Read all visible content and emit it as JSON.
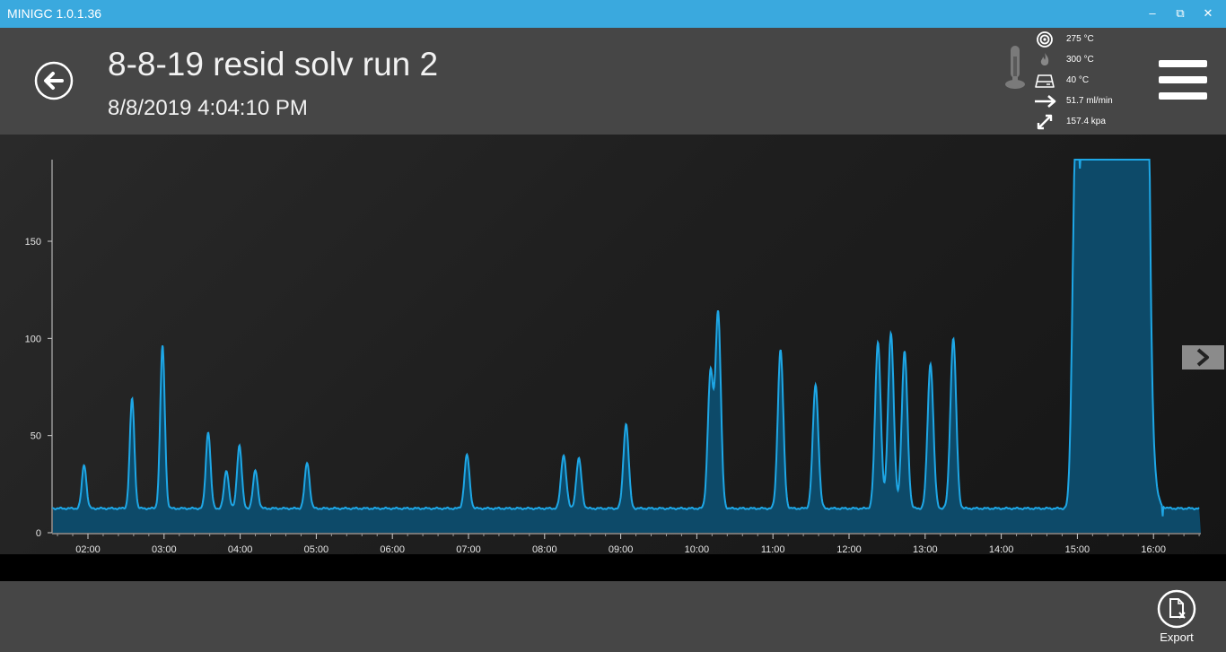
{
  "window": {
    "title": "MINIGC 1.0.1.36",
    "minimize": "–",
    "restore": "⧉",
    "close": "✕"
  },
  "header": {
    "run_title": "8-8-19 resid solv run 2",
    "run_date": "8/8/2019 4:04:10 PM",
    "status": [
      {
        "icon": "target-icon",
        "value": "275 °C"
      },
      {
        "icon": "flame-icon",
        "value": "300 °C"
      },
      {
        "icon": "oven-icon",
        "value": "40 °C"
      },
      {
        "icon": "arrow-right-icon",
        "value": "51.7 ml/min"
      },
      {
        "icon": "expand-arrows-icon",
        "value": "157.4 kpa"
      }
    ]
  },
  "footer": {
    "export_label": "Export"
  },
  "colors": {
    "titlebar": "#3aa9de",
    "series": "#1ea7e6",
    "fill": "#0d4d6e"
  },
  "chart_data": {
    "type": "line",
    "title": "",
    "xlabel": "",
    "ylabel": "",
    "xlim": [
      1.5,
      16.6
    ],
    "ylim": [
      0,
      192
    ],
    "baseline": 12.5,
    "x_ticks": [
      2,
      3,
      4,
      5,
      6,
      7,
      8,
      9,
      10,
      11,
      12,
      13,
      14,
      15,
      16
    ],
    "x_tick_labels": [
      "02:00",
      "03:00",
      "04:00",
      "05:00",
      "06:00",
      "07:00",
      "08:00",
      "09:00",
      "10:00",
      "11:00",
      "12:00",
      "13:00",
      "14:00",
      "15:00",
      "16:00"
    ],
    "y_ticks": [
      0,
      50,
      100,
      150
    ],
    "peaks": [
      {
        "t": 1.95,
        "h": 35
      },
      {
        "t": 2.58,
        "h": 69
      },
      {
        "t": 2.98,
        "h": 96
      },
      {
        "t": 3.58,
        "h": 52
      },
      {
        "t": 3.82,
        "h": 32
      },
      {
        "t": 3.99,
        "h": 45
      },
      {
        "t": 4.2,
        "h": 32
      },
      {
        "t": 4.88,
        "h": 36
      },
      {
        "t": 6.98,
        "h": 40
      },
      {
        "t": 8.25,
        "h": 40
      },
      {
        "t": 8.45,
        "h": 38
      },
      {
        "t": 9.07,
        "h": 56
      },
      {
        "t": 10.18,
        "h": 82
      },
      {
        "t": 10.28,
        "h": 113
      },
      {
        "t": 11.1,
        "h": 94
      },
      {
        "t": 11.56,
        "h": 76
      },
      {
        "t": 12.38,
        "h": 98
      },
      {
        "t": 12.55,
        "h": 103
      },
      {
        "t": 12.73,
        "h": 93
      },
      {
        "t": 13.07,
        "h": 87
      },
      {
        "t": 13.37,
        "h": 100
      },
      {
        "t": 14.97,
        "h": 167
      },
      {
        "t": 15.03,
        "h": 142
      }
    ],
    "saturated_region": {
      "x": [
        15.05,
        15.95
      ],
      "y": 192
    }
  }
}
